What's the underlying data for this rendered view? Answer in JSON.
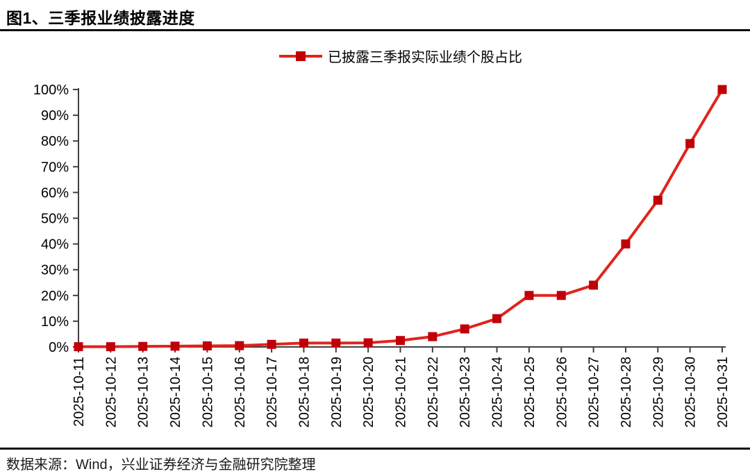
{
  "header": {
    "title": "图1、三季报业绩披露进度"
  },
  "legend": {
    "label": "已披露三季报实际业绩个股占比"
  },
  "footer": {
    "source": "数据来源：Wind，兴业证券经济与金融研究院整理"
  },
  "colors": {
    "line": "#e0241b",
    "marker": "#c00008",
    "axis": "#404040",
    "tick_text": "#000000"
  },
  "chart_data": {
    "type": "line",
    "title": "图1、三季报业绩披露进度",
    "categories": [
      "2025-10-11",
      "2025-10-12",
      "2025-10-13",
      "2025-10-14",
      "2025-10-15",
      "2025-10-16",
      "2025-10-17",
      "2025-10-18",
      "2025-10-19",
      "2025-10-20",
      "2025-10-21",
      "2025-10-22",
      "2025-10-23",
      "2025-10-24",
      "2025-10-25",
      "2025-10-26",
      "2025-10-27",
      "2025-10-28",
      "2025-10-29",
      "2025-10-30",
      "2025-10-31"
    ],
    "series": [
      {
        "name": "已披露三季报实际业绩个股占比",
        "values": [
          0.1,
          0.1,
          0.2,
          0.3,
          0.4,
          0.5,
          1.0,
          1.5,
          1.5,
          1.6,
          2.5,
          4.0,
          7.0,
          11.0,
          20.0,
          20.0,
          24.0,
          40.0,
          57.0,
          79.0,
          100.0
        ]
      }
    ],
    "xlabel": "",
    "ylabel": "",
    "ylim": [
      0,
      100
    ],
    "ytick_values": [
      0,
      10,
      20,
      30,
      40,
      50,
      60,
      70,
      80,
      90,
      100
    ],
    "ytick_labels": [
      "0%",
      "10%",
      "20%",
      "30%",
      "40%",
      "50%",
      "60%",
      "70%",
      "80%",
      "90%",
      "100%"
    ],
    "grid": false,
    "legend_position": "top-center",
    "marker": "square"
  }
}
